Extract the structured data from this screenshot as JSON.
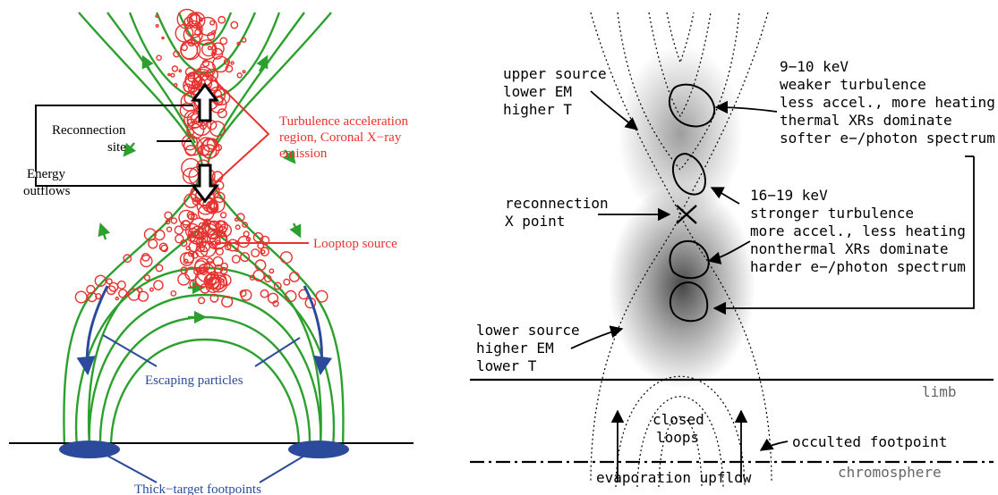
{
  "left_panel": {
    "labels": {
      "reconnection": [
        "Reconnection",
        "site"
      ],
      "energy": [
        "Energy",
        "outflows"
      ],
      "turbulence": [
        "Turbulence acceleration",
        "region, Coronal X−ray",
        "emission"
      ],
      "looptop": "Looptop source",
      "escaping": "Escaping particles",
      "footpoints": "Thick−target footpoints"
    },
    "colors": {
      "field_lines": "#2ca02c",
      "circles": "#e8322f",
      "blue": "#2b4a9b",
      "black": "#000000"
    }
  },
  "right_panel": {
    "labels": {
      "upper_source": [
        "upper source",
        "lower EM",
        "higher T"
      ],
      "reconnection_x": [
        "reconnection",
        "X point"
      ],
      "lower_source": [
        "lower source",
        "higher EM",
        "lower T"
      ],
      "kev_9_10": [
        "9−10 keV",
        "weaker turbulence",
        "less accel., more heating",
        "thermal XRs dominate",
        "softer e−/photon spectrum"
      ],
      "kev_16_19": [
        "16−19 keV",
        "stronger turbulence",
        "more accel., less heating",
        "nonthermal XRs dominate",
        "harder e−/photon spectrum"
      ],
      "limb": "limb",
      "closed_loops": [
        "closed",
        "loops"
      ],
      "occulted_footpoint": "occulted footpoint",
      "evaporation": "evaporation upflow",
      "chromosphere": "chromosphere"
    }
  }
}
